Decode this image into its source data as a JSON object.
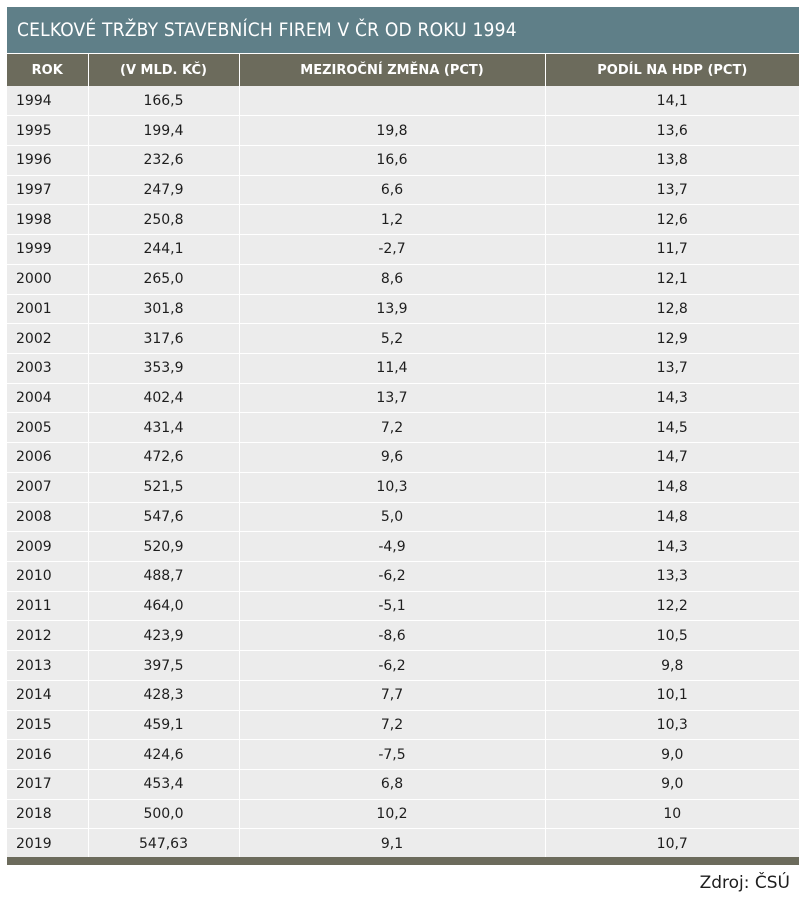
{
  "title": "CELKOVÉ TRŽBY STAVEBNÍCH FIREM V ČR OD ROKU 1994",
  "table": {
    "headers": [
      "ROK",
      "(V MLD. KČ)",
      "MEZIROČNÍ ZMĚNA (PCT)",
      "PODÍL NA HDP (PCT)"
    ],
    "rows": [
      [
        "1994",
        "166,5",
        "",
        "14,1"
      ],
      [
        "1995",
        "199,4",
        "19,8",
        "13,6"
      ],
      [
        "1996",
        "232,6",
        "16,6",
        "13,8"
      ],
      [
        "1997",
        "247,9",
        "6,6",
        "13,7"
      ],
      [
        "1998",
        "250,8",
        "1,2",
        "12,6"
      ],
      [
        "1999",
        "244,1",
        "-2,7",
        "11,7"
      ],
      [
        "2000",
        "265,0",
        "8,6",
        "12,1"
      ],
      [
        "2001",
        "301,8",
        "13,9",
        "12,8"
      ],
      [
        "2002",
        "317,6",
        "5,2",
        "12,9"
      ],
      [
        "2003",
        "353,9",
        "11,4",
        "13,7"
      ],
      [
        "2004",
        "402,4",
        "13,7",
        "14,3"
      ],
      [
        "2005",
        "431,4",
        "7,2",
        "14,5"
      ],
      [
        "2006",
        "472,6",
        "9,6",
        "14,7"
      ],
      [
        "2007",
        "521,5",
        "10,3",
        "14,8"
      ],
      [
        "2008",
        "547,6",
        "5,0",
        "14,8"
      ],
      [
        "2009",
        "520,9",
        "-4,9",
        "14,3"
      ],
      [
        "2010",
        "488,7",
        "-6,2",
        "13,3"
      ],
      [
        "2011",
        "464,0",
        "-5,1",
        "12,2"
      ],
      [
        "2012",
        "423,9",
        "-8,6",
        "10,5"
      ],
      [
        "2013",
        "397,5",
        "-6,2",
        "9,8"
      ],
      [
        "2014",
        "428,3",
        "7,7",
        "10,1"
      ],
      [
        "2015",
        "459,1",
        "7,2",
        "10,3"
      ],
      [
        "2016",
        "424,6",
        "-7,5",
        "9,0"
      ],
      [
        "2017",
        "453,4",
        "6,8",
        "9,0"
      ],
      [
        "2018",
        "500,0",
        "10,2",
        "10"
      ],
      [
        "2019",
        "547,63",
        "9,1",
        "10,7"
      ]
    ]
  },
  "source": "Zdroj: ČSÚ",
  "colors": {
    "title_background": "#5f7f88",
    "header_background": "#6c6b5c",
    "row_background": "#ececec",
    "bottom_bar": "#6c6b5c"
  }
}
